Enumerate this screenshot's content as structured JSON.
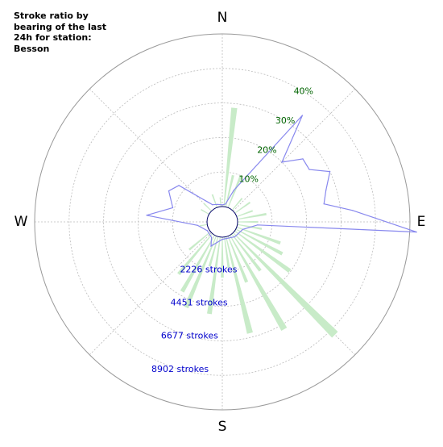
{
  "chart_data": {
    "type": "polar",
    "title": "Stroke ratio by bearing of the last 24h for station: Besson",
    "directions": [
      "N",
      "E",
      "S",
      "W"
    ],
    "ratio_ticks": [
      "10%",
      "20%",
      "30%",
      "40%"
    ],
    "stroke_ticks": [
      "2226 strokes",
      "4451 strokes",
      "6677 strokes",
      "8902 strokes"
    ],
    "ratio_color": "#006400",
    "strokes_color": "#0000cc",
    "bar_color": "#c8ebc8",
    "line_color": "#8888ee",
    "bar_bin_width_deg": 3,
    "bars_strokes": [
      {
        "bearing": 6,
        "strokes": 6400
      },
      {
        "bearing": 13,
        "strokes": 2100
      },
      {
        "bearing": 22,
        "strokes": 2200
      },
      {
        "bearing": 40,
        "strokes": 1000
      },
      {
        "bearing": 55,
        "strokes": 1200
      },
      {
        "bearing": 70,
        "strokes": 1100
      },
      {
        "bearing": 80,
        "strokes": 1900
      },
      {
        "bearing": 90,
        "strokes": 1300
      },
      {
        "bearing": 100,
        "strokes": 1600
      },
      {
        "bearing": 110,
        "strokes": 3000
      },
      {
        "bearing": 118,
        "strokes": 3400
      },
      {
        "bearing": 126,
        "strokes": 4400
      },
      {
        "bearing": 135,
        "strokes": 9300
      },
      {
        "bearing": 142,
        "strokes": 3000
      },
      {
        "bearing": 150,
        "strokes": 7000
      },
      {
        "bearing": 158,
        "strokes": 3200
      },
      {
        "bearing": 166,
        "strokes": 6400
      },
      {
        "bearing": 172,
        "strokes": 2000
      },
      {
        "bearing": 180,
        "strokes": 2600
      },
      {
        "bearing": 188,
        "strokes": 5000
      },
      {
        "bearing": 196,
        "strokes": 2000
      },
      {
        "bearing": 203,
        "strokes": 5000
      },
      {
        "bearing": 210,
        "strokes": 4200
      },
      {
        "bearing": 220,
        "strokes": 3400
      },
      {
        "bearing": 230,
        "strokes": 1800
      },
      {
        "bearing": 260,
        "strokes": 500
      },
      {
        "bearing": 300,
        "strokes": 600
      },
      {
        "bearing": 315,
        "strokes": 700
      },
      {
        "bearing": 340,
        "strokes": 900
      },
      {
        "bearing": 355,
        "strokes": 600
      }
    ],
    "line_ratio": [
      {
        "bearing": 0,
        "ratio": 0.5
      },
      {
        "bearing": 10,
        "ratio": 0.8
      },
      {
        "bearing": 20,
        "ratio": 5.3
      },
      {
        "bearing": 37,
        "ratio": 34.2
      },
      {
        "bearing": 45,
        "ratio": 20.0
      },
      {
        "bearing": 52,
        "ratio": 25.2
      },
      {
        "bearing": 59,
        "ratio": 25.0
      },
      {
        "bearing": 65,
        "ratio": 30.0
      },
      {
        "bearing": 73,
        "ratio": 27.0
      },
      {
        "bearing": 80,
        "ratio": 25.5
      },
      {
        "bearing": 85,
        "ratio": 33.5
      },
      {
        "bearing": 93,
        "ratio": 52.0
      },
      {
        "bearing": 95,
        "ratio": 5.8
      },
      {
        "bearing": 110,
        "ratio": 1.9
      },
      {
        "bearing": 140,
        "ratio": 1.2
      },
      {
        "bearing": 180,
        "ratio": 0.6
      },
      {
        "bearing": 205,
        "ratio": 3.3
      },
      {
        "bearing": 215,
        "ratio": 1.0
      },
      {
        "bearing": 240,
        "ratio": 0.6
      },
      {
        "bearing": 262,
        "ratio": 2.8
      },
      {
        "bearing": 275,
        "ratio": 17.6
      },
      {
        "bearing": 286,
        "ratio": 10.5
      },
      {
        "bearing": 300,
        "ratio": 13.5
      },
      {
        "bearing": 310,
        "ratio": 12.0
      },
      {
        "bearing": 330,
        "ratio": 1.3
      },
      {
        "bearing": 345,
        "ratio": 0.8
      }
    ]
  }
}
